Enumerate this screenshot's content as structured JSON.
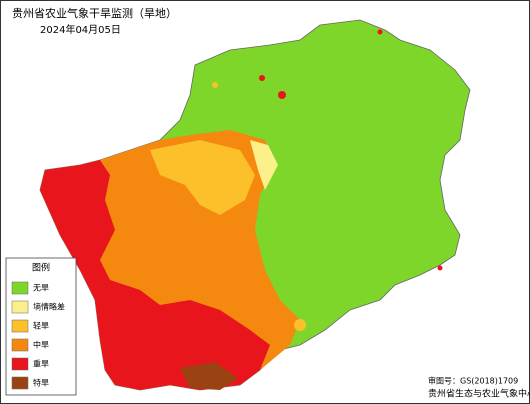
{
  "header": {
    "title": "贵州省农业气象干旱监测（旱地）",
    "date": "2024年04月05日"
  },
  "legend": {
    "title": "图例",
    "items": [
      {
        "label": "无旱",
        "color": "#7ed62a"
      },
      {
        "label": "墒情略差",
        "color": "#fbf08a"
      },
      {
        "label": "轻旱",
        "color": "#fcc02a"
      },
      {
        "label": "中旱",
        "color": "#f5890f"
      },
      {
        "label": "重旱",
        "color": "#e8151c"
      },
      {
        "label": "特旱",
        "color": "#9a4212"
      }
    ]
  },
  "footer": {
    "review_number": "审图号：GS(2018)1709",
    "organization": "贵州省生态与农业气象中心"
  }
}
